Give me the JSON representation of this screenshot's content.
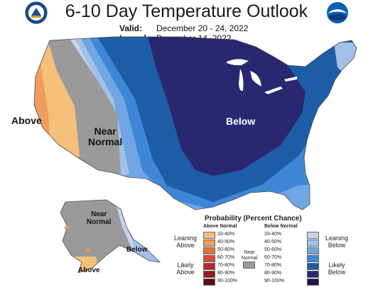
{
  "title": "6-10 Day Temperature Outlook",
  "valid_label": "Valid:",
  "valid_value": "December 20 - 24, 2022",
  "issued_label": "Issued:",
  "issued_value": "December 14, 2022",
  "map_labels": {
    "above": "Above",
    "near_normal_line1": "Near",
    "near_normal_line2": "Normal",
    "below": "Below",
    "ak_near_line1": "Near",
    "ak_near_line2": "Normal",
    "ak_below": "Below",
    "ak_above": "Above"
  },
  "legend": {
    "title": "Probability (Percent Chance)",
    "above_head": "Above Normal",
    "below_head": "Below Normal",
    "above_items": [
      {
        "label": "33-40%",
        "color": "#f5c07a"
      },
      {
        "label": "40-50%",
        "color": "#ef9d5a"
      },
      {
        "label": "50-60%",
        "color": "#e4723f"
      },
      {
        "label": "60-70%",
        "color": "#d84a35"
      },
      {
        "label": "70-80%",
        "color": "#b8282a"
      },
      {
        "label": "80-90%",
        "color": "#8e1c22"
      },
      {
        "label": "90-100%",
        "color": "#5a0f15"
      }
    ],
    "below_items": [
      {
        "label": "33-40%",
        "color": "#c5d3ec"
      },
      {
        "label": "40-50%",
        "color": "#a3c0e8"
      },
      {
        "label": "50-60%",
        "color": "#6fa6e3"
      },
      {
        "label": "60-70%",
        "color": "#3f87d6"
      },
      {
        "label": "70-80%",
        "color": "#1d5da6"
      },
      {
        "label": "80-90%",
        "color": "#28276f"
      },
      {
        "label": "90-100%",
        "color": "#1c1749"
      }
    ],
    "near": {
      "line1": "Near",
      "line2": "Normal",
      "color": "#9a9a9a"
    },
    "leaning_above": {
      "line1": "Leaning",
      "line2": "Above"
    },
    "likely_above": {
      "line1": "Likely",
      "line2": "Above"
    },
    "leaning_below": {
      "line1": "Leaning",
      "line2": "Below"
    },
    "likely_below": {
      "line1": "Likely",
      "line2": "Below"
    }
  },
  "colors": {
    "above_33": "#f5c07a",
    "above_40": "#ef9d5a",
    "near": "#9a9a9a",
    "below_33": "#c5d3ec",
    "below_40": "#a3c0e8",
    "below_50": "#6fa6e3",
    "below_60": "#3f87d6",
    "below_70": "#1d5da6",
    "below_80": "#28276f"
  },
  "logos": {
    "left": "noaa-cpc-seal-icon",
    "right": "noaa-logo-icon"
  }
}
